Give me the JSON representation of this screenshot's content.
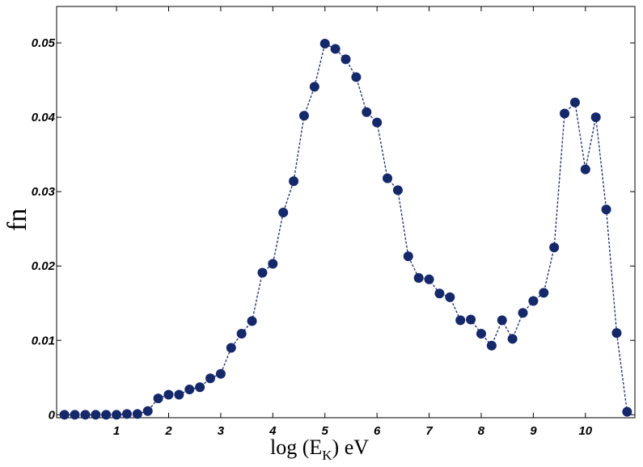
{
  "chart_data": {
    "type": "line",
    "xlabel": [
      "log (E",
      "K",
      ") eV"
    ],
    "ylabel": "fn",
    "x": [
      0,
      0.2,
      0.4,
      0.6,
      0.8,
      1.0,
      1.2,
      1.4,
      1.6,
      1.8,
      2.0,
      2.2,
      2.4,
      2.6,
      2.8,
      3.0,
      3.2,
      3.4,
      3.6,
      3.8,
      4.0,
      4.2,
      4.4,
      4.6,
      4.8,
      5.0,
      5.2,
      5.4,
      5.6,
      5.8,
      6.0,
      6.2,
      6.4,
      6.6,
      6.8,
      7.0,
      7.2,
      7.4,
      7.6,
      7.8,
      8.0,
      8.2,
      8.4,
      8.6,
      8.8,
      9.0,
      9.2,
      9.4,
      9.6,
      9.8,
      10.0,
      10.2,
      10.4,
      10.6,
      10.8
    ],
    "series": [
      {
        "color": "#14286a",
        "values": [
          0,
          0,
          0,
          0,
          0,
          0,
          0.0001,
          0.0001,
          0.0005,
          0.0022,
          0.0027,
          0.0027,
          0.0034,
          0.0037,
          0.0049,
          0.0055,
          0.009,
          0.0109,
          0.0126,
          0.0191,
          0.0203,
          0.0272,
          0.0314,
          0.0402,
          0.0441,
          0.0499,
          0.0492,
          0.0478,
          0.0454,
          0.0407,
          0.0393,
          0.0318,
          0.0302,
          0.0213,
          0.0184,
          0.0182,
          0.0163,
          0.0158,
          0.0127,
          0.0128,
          0.0109,
          0.0093,
          0.0127,
          0.0102,
          0.0137,
          0.0153,
          0.0164,
          0.0225,
          0.0405,
          0.042,
          0.033,
          0.04,
          0.0276,
          0.011,
          0.0004
        ]
      }
    ],
    "xlim": [
      -0.15,
      10.95
    ],
    "ylim": [
      -0.0004,
      0.0549
    ],
    "xticks": [
      1,
      2,
      3,
      4,
      5,
      6,
      7,
      8,
      9,
      10
    ],
    "yticks": [
      0,
      0.01,
      0.02,
      0.03,
      0.04,
      0.05
    ]
  }
}
